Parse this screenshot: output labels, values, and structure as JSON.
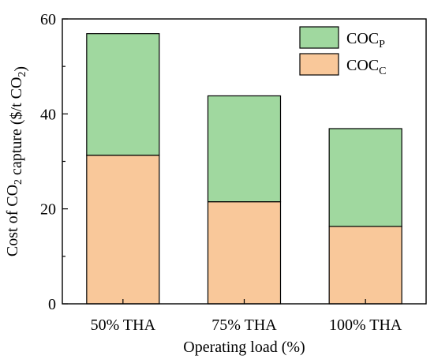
{
  "chart_data": {
    "type": "bar",
    "stacked": true,
    "categories": [
      "50% THA",
      "75% THA",
      "100% THA"
    ],
    "series": [
      {
        "name": "COC_C",
        "values": [
          31.3,
          21.5,
          16.3
        ],
        "color": "#f9c89a"
      },
      {
        "name": "COC_P",
        "values": [
          25.6,
          22.3,
          20.6
        ],
        "color": "#a0d89f"
      }
    ],
    "totals": [
      56.9,
      43.8,
      36.9
    ],
    "xlabel": "Operating load (%)",
    "ylabel": "Cost of CO2 capture ($/t CO2)",
    "ylim": [
      0,
      60
    ],
    "yticks": [
      0,
      20,
      40,
      60
    ],
    "legend": {
      "placement": "top-right",
      "entries": [
        {
          "base": "COC",
          "sub": "P",
          "color": "#a0d89f"
        },
        {
          "base": "COC",
          "sub": "C",
          "color": "#f9c89a"
        }
      ]
    },
    "grid": false
  }
}
